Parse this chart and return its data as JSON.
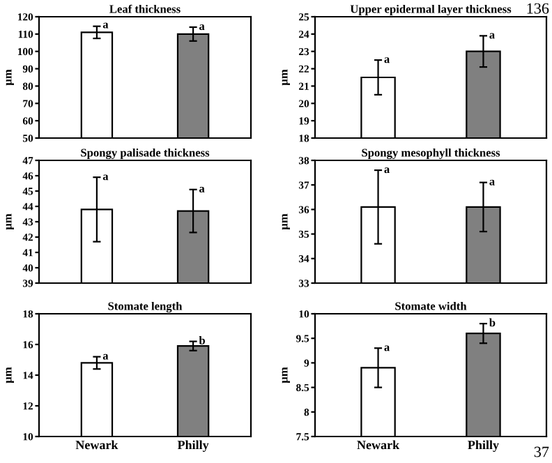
{
  "chart_data": [
    {
      "type": "bar",
      "title": "Leaf thickness",
      "ylabel": "µm",
      "categories": [
        "Newark",
        "Philly"
      ],
      "values": [
        111,
        110
      ],
      "errors": [
        3.5,
        4
      ],
      "colors": [
        "#ffffff",
        "#808080"
      ],
      "ylim": [
        50,
        120
      ],
      "yticks": [
        50,
        60,
        70,
        80,
        90,
        100,
        110,
        120
      ],
      "tick_labels": "y",
      "annotations": [
        {
          "text": "a",
          "x": "Newark",
          "y": 115
        },
        {
          "text": "a",
          "x": "Philly",
          "y": 114
        }
      ]
    },
    {
      "type": "bar",
      "title": "Upper epidermal layer thickness",
      "ylabel": "µm",
      "categories": [
        "Newark",
        "Philly"
      ],
      "values": [
        21.5,
        23
      ],
      "errors": [
        1,
        0.9
      ],
      "colors": [
        "#ffffff",
        "#808080"
      ],
      "ylim": [
        18,
        25
      ],
      "yticks": [
        18,
        19,
        20,
        21,
        22,
        23,
        24,
        25
      ],
      "tick_labels": "y",
      "annotations": [
        {
          "text": "a",
          "x": "Newark",
          "y": 22.5
        },
        {
          "text": "a",
          "x": "Philly",
          "y": 23.9
        },
        "136"
      ]
    },
    {
      "type": "bar",
      "title": "Spongy palisade thickness",
      "ylabel": "µm",
      "categories": [
        "Newark",
        "Philly"
      ],
      "values": [
        43.8,
        43.7
      ],
      "errors": [
        2.1,
        1.4
      ],
      "colors": [
        "#ffffff",
        "#808080"
      ],
      "ylim": [
        39,
        47
      ],
      "yticks": [
        39,
        40,
        41,
        42,
        43,
        44,
        45,
        46,
        47
      ],
      "tick_labels": "y",
      "annotations": [
        {
          "text": "a",
          "x": "Newark",
          "y": 45.9
        },
        {
          "text": "a",
          "x": "Philly",
          "y": 45.1
        }
      ]
    },
    {
      "type": "bar",
      "title": "Spongy mesophyll thickness",
      "ylabel": "µm",
      "categories": [
        "Newark",
        "Philly"
      ],
      "values": [
        36.1,
        36.1
      ],
      "errors": [
        1.5,
        1
      ],
      "colors": [
        "#ffffff",
        "#808080"
      ],
      "ylim": [
        33,
        38
      ],
      "yticks": [
        33,
        34,
        35,
        36,
        37,
        38
      ],
      "tick_labels": "y",
      "annotations": [
        {
          "text": "a",
          "x": "Newark",
          "y": 37.6
        },
        {
          "text": "a",
          "x": "Philly",
          "y": 37.1
        }
      ]
    },
    {
      "type": "bar",
      "title": "Stomate length",
      "ylabel": "µm",
      "categories": [
        "Newark",
        "Philly"
      ],
      "values": [
        14.8,
        15.9
      ],
      "errors": [
        0.4,
        0.3
      ],
      "colors": [
        "#ffffff",
        "#808080"
      ],
      "ylim": [
        10,
        18
      ],
      "yticks": [
        10,
        12,
        14,
        16,
        18
      ],
      "annotations": [
        {
          "text": "a",
          "x": "Newark",
          "y": 15.2
        },
        {
          "text": "b",
          "x": "Philly",
          "y": 16.2
        }
      ]
    },
    {
      "type": "bar",
      "title": "Stomate width",
      "ylabel": "µm",
      "categories": [
        "Newark",
        "Philly"
      ],
      "values": [
        8.9,
        9.6
      ],
      "errors": [
        0.4,
        0.2
      ],
      "colors": [
        "#ffffff",
        "#808080"
      ],
      "ylim": [
        7.5,
        10
      ],
      "yticks": [
        7.5,
        8,
        8.5,
        9,
        9.5,
        10
      ],
      "annotations": [
        {
          "text": "a",
          "x": "Newark",
          "y": 9.3
        },
        {
          "text": "b",
          "x": "Philly",
          "y": 9.8
        },
        "37"
      ]
    }
  ]
}
